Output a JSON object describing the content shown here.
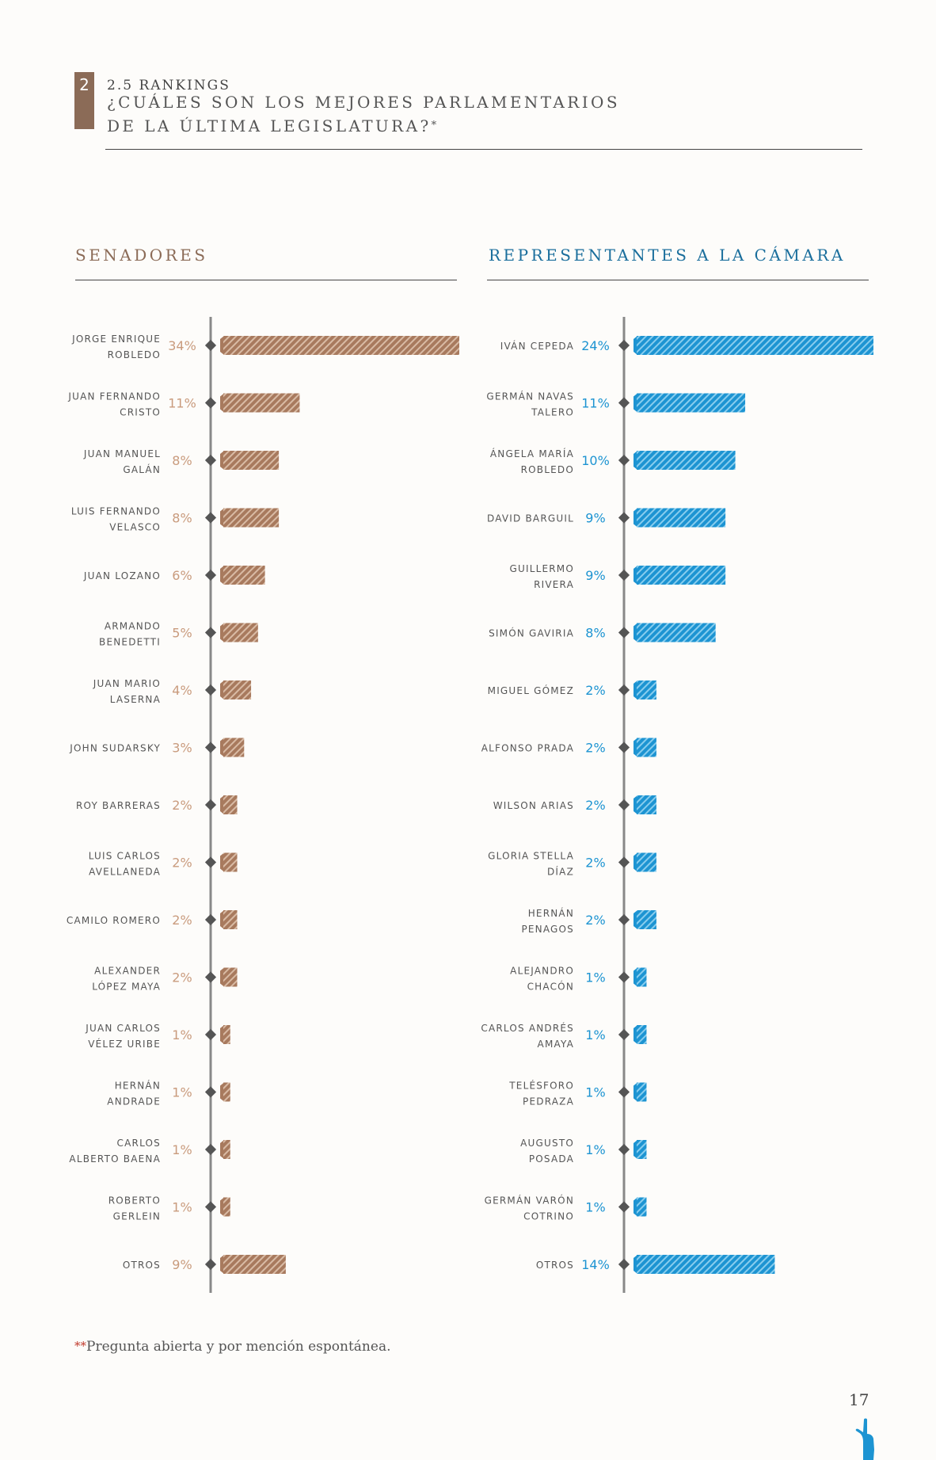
{
  "header": {
    "section_number": "2",
    "section_label": "2.5 RANKINGS",
    "title_line1": "¿CUÁLES SON LOS MEJORES PARLAMENTARIOS",
    "title_line2": "DE LA ÚLTIMA LEGISLATURA?",
    "title_marker": "*"
  },
  "colors": {
    "senadores": "#a87a5e",
    "senadores_stripe": "#d9bba5",
    "senadores_label": "#c99b7d",
    "representantes": "#1d94d2",
    "representantes_stripe": "#88cdee",
    "representantes_label": "#1d94d2",
    "axis": "#888888",
    "marker": "#555555"
  },
  "chart_data": [
    {
      "type": "bar",
      "title": "SENADORES",
      "orientation": "horizontal",
      "categories": [
        [
          "JORGE ENRIQUE",
          "ROBLEDO"
        ],
        [
          "JUAN FERNANDO",
          "CRISTO"
        ],
        [
          "JUAN MANUEL",
          "GALÁN"
        ],
        [
          "LUIS FERNANDO",
          "VELASCO"
        ],
        [
          "JUAN LOZANO"
        ],
        [
          "ARMANDO",
          "BENEDETTI"
        ],
        [
          "JUAN MARIO",
          "LASERNA"
        ],
        [
          "JOHN SUDARSKY"
        ],
        [
          "ROY BARRERAS"
        ],
        [
          "LUIS CARLOS",
          "AVELLANEDA"
        ],
        [
          "CAMILO ROMERO"
        ],
        [
          "ALEXANDER",
          "LÓPEZ MAYA"
        ],
        [
          "JUAN CARLOS",
          "VÉLEZ URIBE"
        ],
        [
          "HERNÁN",
          "ANDRADE"
        ],
        [
          "CARLOS",
          "ALBERTO BAENA"
        ],
        [
          "ROBERTO",
          "GERLEIN"
        ],
        [
          "OTROS"
        ]
      ],
      "values": [
        34,
        11,
        8,
        8,
        6,
        5,
        4,
        3,
        2,
        2,
        2,
        2,
        1,
        1,
        1,
        1,
        9
      ],
      "value_labels": [
        "34%",
        "11%",
        "8%",
        "8%",
        "6%",
        "5%",
        "4%",
        "3%",
        "2%",
        "2%",
        "2%",
        "2%",
        "1%",
        "1%",
        "1%",
        "1%",
        "9%"
      ],
      "xlim": [
        0,
        34
      ]
    },
    {
      "type": "bar",
      "title": "REPRESENTANTES A LA CÁMARA",
      "orientation": "horizontal",
      "categories": [
        [
          "IVÁN CEPEDA"
        ],
        [
          "GERMÁN NAVAS",
          "TALERO"
        ],
        [
          "ÁNGELA MARÍA",
          "ROBLEDO"
        ],
        [
          "DAVID BARGUIL"
        ],
        [
          "GUILLERMO",
          "RIVERA"
        ],
        [
          "SIMÓN GAVIRIA"
        ],
        [
          "MIGUEL GÓMEZ"
        ],
        [
          "ALFONSO PRADA"
        ],
        [
          "WILSON ARIAS"
        ],
        [
          "GLORIA STELLA",
          "DÍAZ"
        ],
        [
          "HERNÁN",
          "PENAGOS"
        ],
        [
          "ALEJANDRO",
          "CHACÓN"
        ],
        [
          "CARLOS ANDRÉS",
          "AMAYA"
        ],
        [
          "TELÉSFORO",
          "PEDRAZA"
        ],
        [
          "AUGUSTO",
          "POSADA"
        ],
        [
          "GERMÁN VARÓN",
          "COTRINO"
        ],
        [
          "OTROS"
        ]
      ],
      "values": [
        24,
        11,
        10,
        9,
        9,
        8,
        2,
        2,
        2,
        2,
        2,
        1,
        1,
        1,
        1,
        1,
        14
      ],
      "value_labels": [
        "24%",
        "11%",
        "10%",
        "9%",
        "9%",
        "8%",
        "2%",
        "2%",
        "2%",
        "2%",
        "2%",
        "1%",
        "1%",
        "1%",
        "1%",
        "1%",
        "14%"
      ],
      "xlim": [
        0,
        24
      ]
    }
  ],
  "footnote": {
    "marker": "**",
    "text": "Pregunta abierta y por mención espontánea."
  },
  "page_number": "17"
}
